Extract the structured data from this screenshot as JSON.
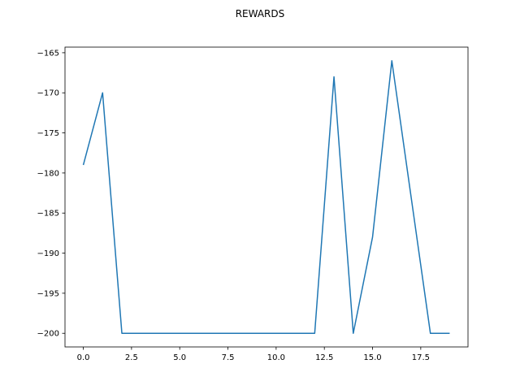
{
  "chart_data": {
    "type": "line",
    "title": "REWARDS",
    "xlabel": "",
    "ylabel": "",
    "xlim": [
      -0.95,
      19.95
    ],
    "ylim": [
      -201.7,
      -164.3
    ],
    "xticks": [
      0.0,
      2.5,
      5.0,
      7.5,
      10.0,
      12.5,
      15.0,
      17.5
    ],
    "xtick_labels": [
      "0.0",
      "2.5",
      "5.0",
      "7.5",
      "10.0",
      "12.5",
      "15.0",
      "17.5"
    ],
    "yticks": [
      -165,
      -170,
      -175,
      -180,
      -185,
      -190,
      -195,
      -200
    ],
    "ytick_labels": [
      "−165",
      "−170",
      "−175",
      "−180",
      "−185",
      "−190",
      "−195",
      "−200"
    ],
    "grid": false,
    "series": [
      {
        "color": "#1f77b4",
        "x": [
          0,
          1,
          2,
          3,
          4,
          5,
          6,
          7,
          8,
          9,
          10,
          11,
          12,
          13,
          14,
          15,
          16,
          17,
          18,
          19
        ],
        "y": [
          -179,
          -170,
          -200,
          -200,
          -200,
          -200,
          -200,
          -200,
          -200,
          -200,
          -200,
          -200,
          -200,
          -168,
          -200,
          -188,
          -166,
          -183,
          -200,
          -200
        ]
      }
    ]
  }
}
